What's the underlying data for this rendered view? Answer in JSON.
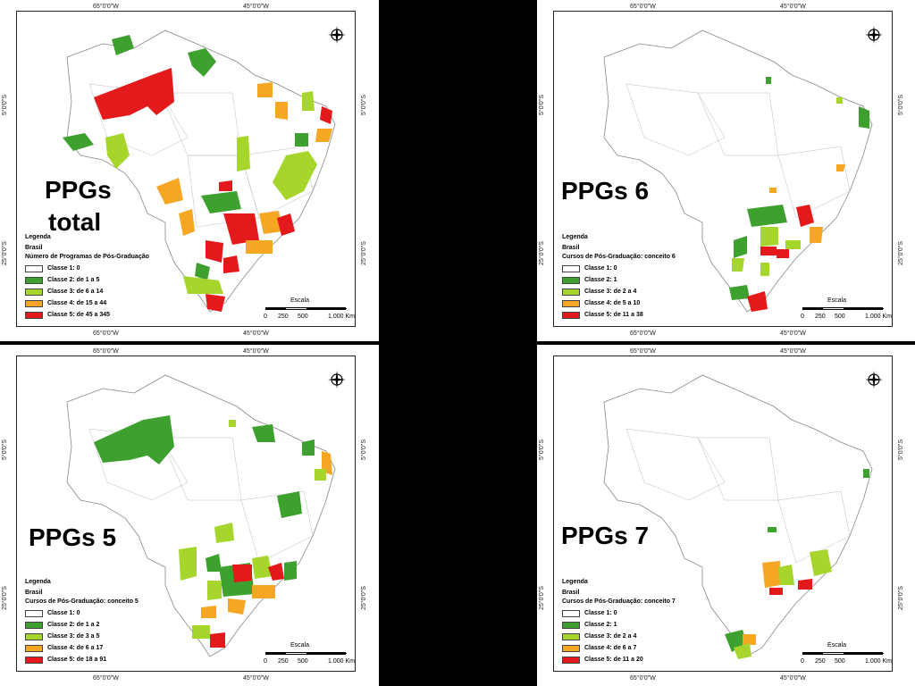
{
  "coords": {
    "lon_left": "65°0'0\"W",
    "lon_right": "45°0'0\"W",
    "lat_top": "5°0'0\"S",
    "lat_bottom": "25°0'0\"S"
  },
  "compass_letters": {
    "n": "N",
    "s": "S",
    "e": "E",
    "w": "W"
  },
  "scale": {
    "title": "Escala",
    "ticks": [
      "0",
      "250",
      "500",
      "1.000 Km"
    ]
  },
  "legend_common": {
    "title": "Legenda",
    "country": "Brasil"
  },
  "panels": [
    {
      "title_line1": "PPGs",
      "title_line2": "total",
      "subtitle": "Número de Programas de Pós-Graduação",
      "classes": [
        "Classe 1: 0",
        "Classe 2: de 1 a 5",
        "Classe 3: de 6 a 14",
        "Classe 4: de 15 a 44",
        "Classe 5: de 45 a 345"
      ]
    },
    {
      "title_line1": "PPGs 6",
      "title_line2": "",
      "subtitle": "Cursos de Pós-Graduação: conceito 6",
      "classes": [
        "Classe 1: 0",
        "Classe 2: 1",
        "Classe 3: de 2 a 4",
        "Classe 4: de 5 a 10",
        "Classe 5: de 11 a 38"
      ]
    },
    {
      "title_line1": "PPGs 5",
      "title_line2": "",
      "subtitle": "Cursos de Pós-Graduação: conceito 5",
      "classes": [
        "Classe 1: 0",
        "Classe 2: de 1 a 2",
        "Classe 3: de 3 a 5",
        "Classe 4: de 6 a 17",
        "Classe 5: de 18 a 91"
      ]
    },
    {
      "title_line1": "PPGs 7",
      "title_line2": "",
      "subtitle": "Cursos de Pós-Graduação: conceito 7",
      "classes": [
        "Classe 1: 0",
        "Classe 2: 1",
        "Classe 3: de 2 a 4",
        "Classe 4: de 6 a 7",
        "Classe 5: de 11 a 20"
      ]
    }
  ],
  "class_colors": [
    "#ffffff",
    "#3ea12f",
    "#a6d62b",
    "#f5a623",
    "#e3191c"
  ]
}
